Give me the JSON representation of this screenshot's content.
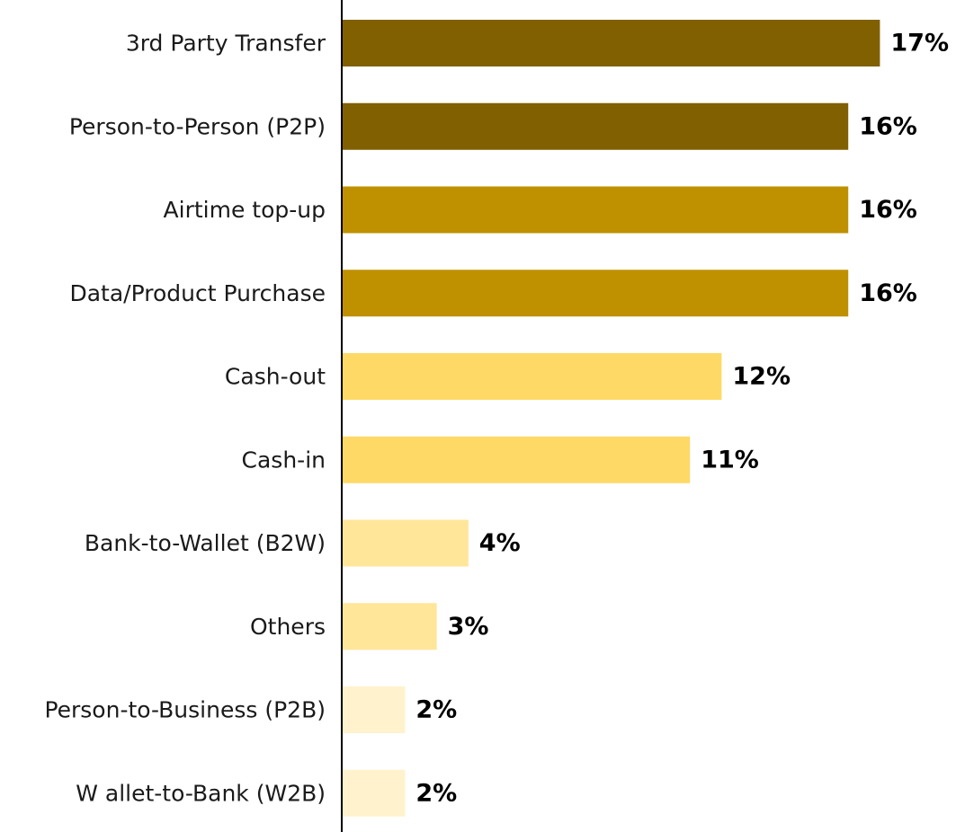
{
  "chart_data": {
    "type": "bar",
    "orientation": "horizontal",
    "categories": [
      "3rd Party Transfer",
      "Person-to-Person (P2P)",
      "Airtime top-up",
      "Data/Product Purchase",
      "Cash-out",
      "Cash-in",
      "Bank-to-Wallet (B2W)",
      "Others",
      "Person-to-Business (P2B)",
      "W allet-to-Bank (W2B)"
    ],
    "values": [
      17,
      16,
      16,
      16,
      12,
      11,
      4,
      3,
      2,
      2
    ],
    "value_labels": [
      "17%",
      "16%",
      "16%",
      "16%",
      "12%",
      "11%",
      "4%",
      "3%",
      "2%",
      "2%"
    ],
    "bar_colors": [
      "#806000",
      "#806000",
      "#bf9000",
      "#bf9000",
      "#ffd966",
      "#ffd966",
      "#ffe699",
      "#ffe699",
      "#fff2cc",
      "#fff2cc"
    ],
    "xlim": [
      0,
      18
    ],
    "grid": false,
    "legend": "none",
    "title": "",
    "xlabel": "",
    "ylabel": ""
  }
}
